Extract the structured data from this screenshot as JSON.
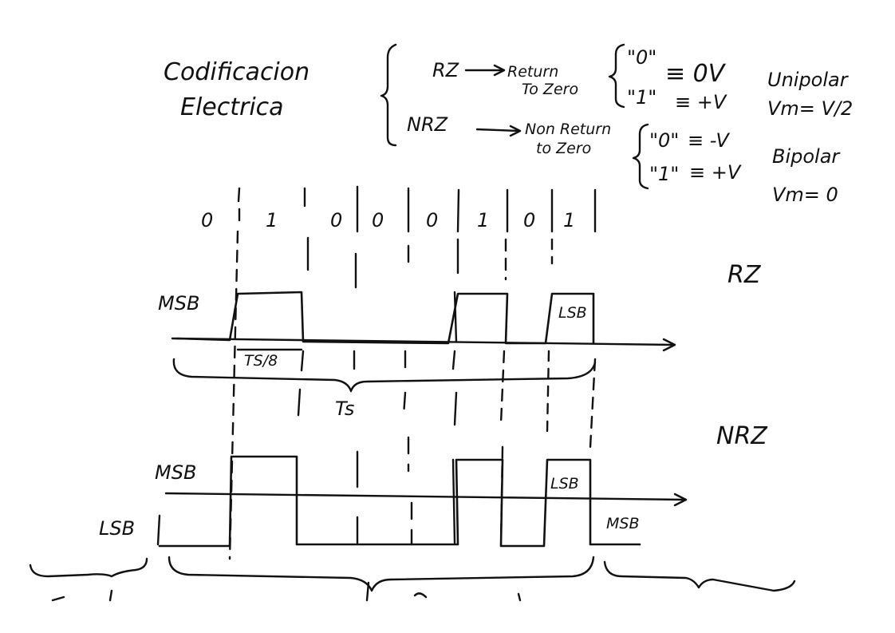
{
  "title": {
    "line1": "Codificacion",
    "line2": "Electrica"
  },
  "legend": {
    "rz": "RZ",
    "rz_meaning_1": "Return",
    "rz_meaning_2": "To Zero",
    "nrz": "NRZ",
    "nrz_meaning_1": "Non Return",
    "nrz_meaning_2": "to Zero",
    "unipolar": {
      "zero_sym": "\"0\"",
      "zero_val": "≡ 0V",
      "one_sym": "\"1\"",
      "one_val": "≡ +V",
      "name": "Unipolar",
      "vm": "Vm= V/2"
    },
    "bipolar": {
      "zero_sym": "\"0\"",
      "zero_val": "≡ -V",
      "one_sym": "\"1\"",
      "one_val": "≡ +V",
      "name": "Bipolar",
      "vm": "Vm= 0"
    }
  },
  "bits": [
    "0",
    "1",
    "0",
    "0",
    "0",
    "1",
    "0",
    "1"
  ],
  "rz_diagram": {
    "name": "RZ",
    "msb_label": "MSB",
    "lsb_label": "LSB",
    "bit_period": "TS/8",
    "total_period": "Ts"
  },
  "nrz_diagram": {
    "name": "NRZ",
    "msb_label": "MSB",
    "lsb_left_label": "LSB",
    "lsb_box_label": "LSB",
    "next_msb_label": "MSB"
  }
}
